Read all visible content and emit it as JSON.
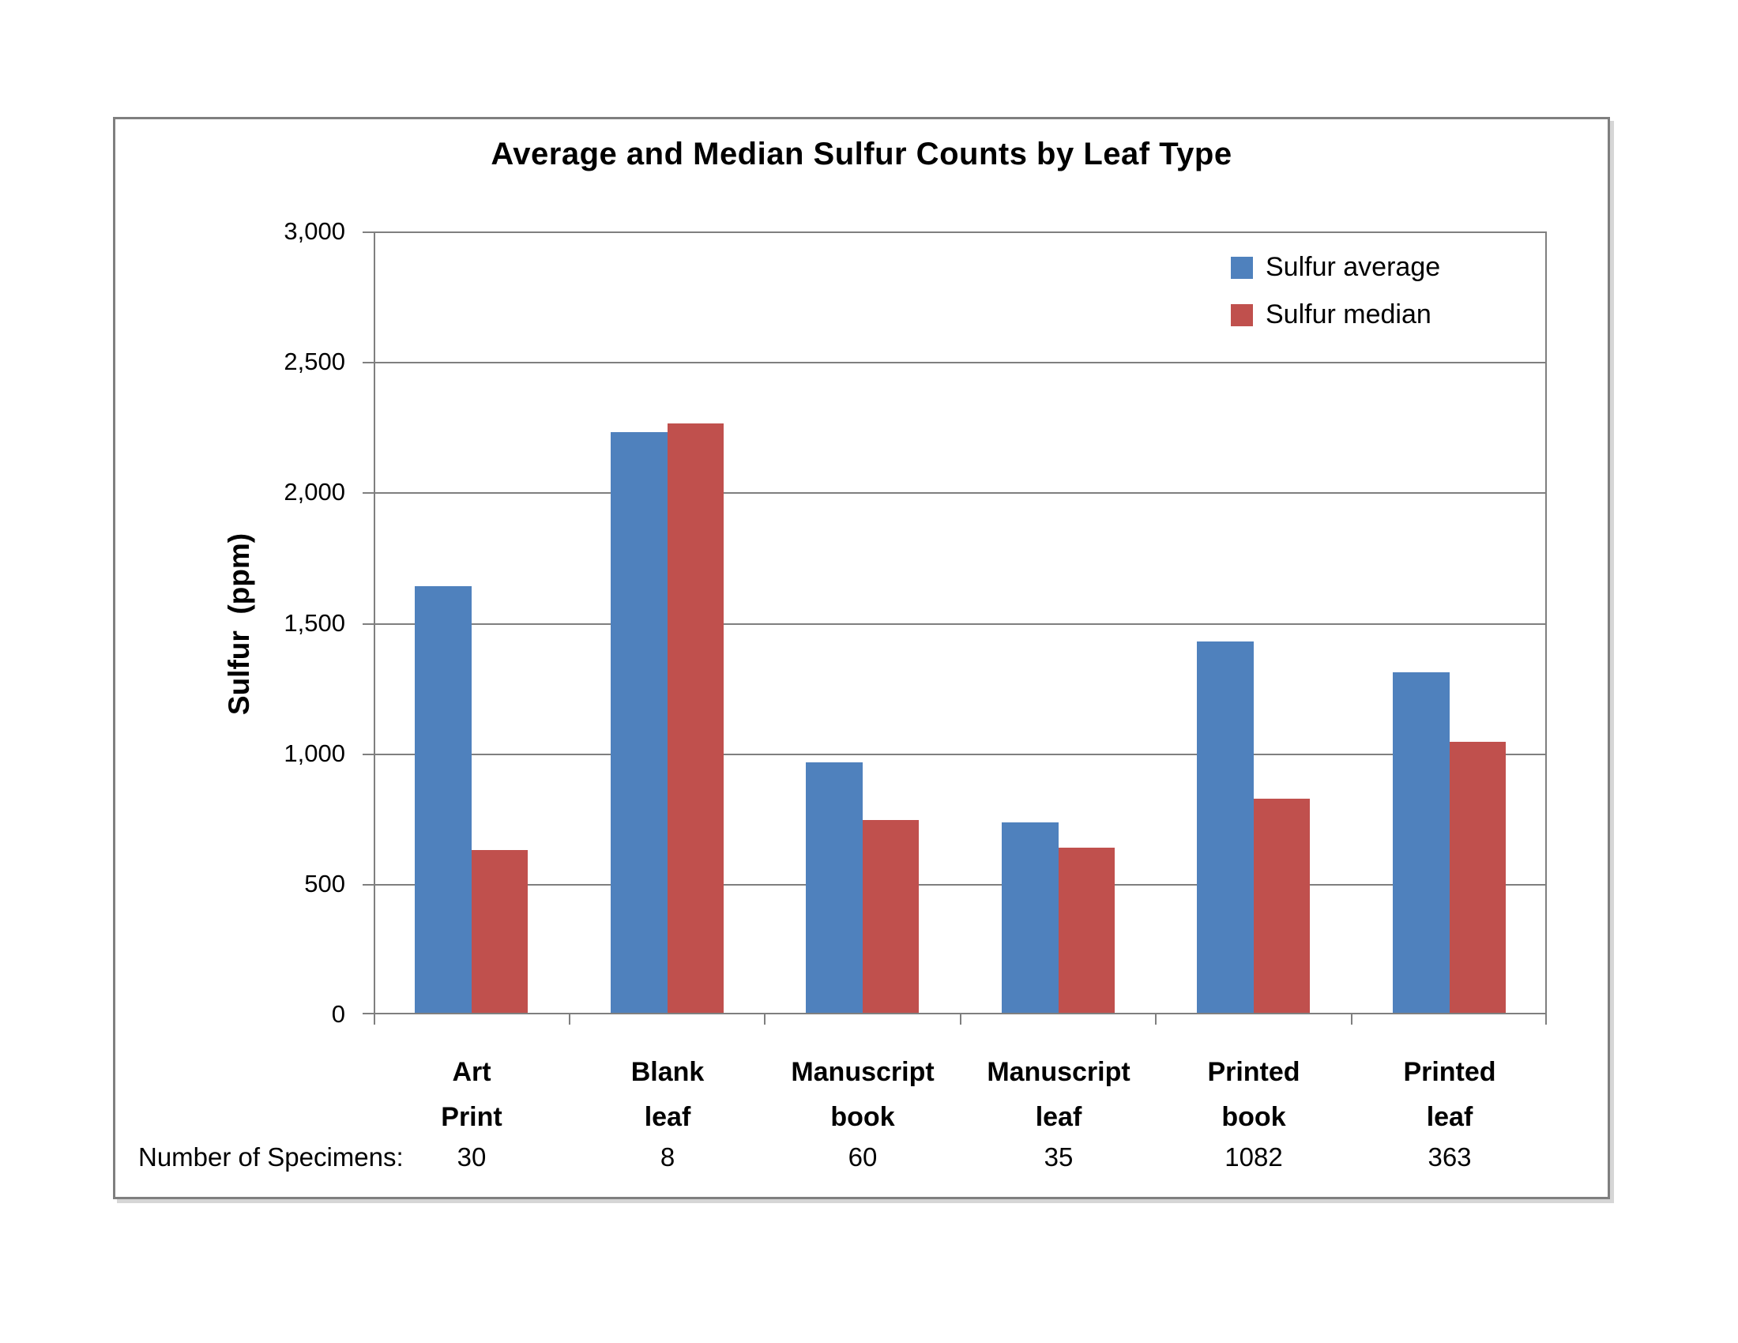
{
  "title": "Average and Median Sulfur Counts by Leaf Type",
  "y_axis": {
    "label": "Sulfur  (ppm)",
    "min": 0,
    "max": 3000,
    "step": 500,
    "tick_labels": [
      "3,000",
      "2,500",
      "2,000",
      "1,500",
      "1,000",
      "500",
      "0"
    ]
  },
  "x_axis": {
    "specimens_label": "Number of Specimens:"
  },
  "legend": [
    {
      "label": "Sulfur average",
      "color": "#4F81BD"
    },
    {
      "label": "Sulfur median",
      "color": "#C0504D"
    }
  ],
  "colors": {
    "average_bar": "#4F81BD",
    "median_bar": "#C0504D",
    "grid_and_axis": "#7f7f7f",
    "chart_border": "#7f7f7f"
  },
  "chart_data": {
    "type": "bar",
    "title": "Average and Median Sulfur Counts by Leaf Type",
    "categories": [
      "Art Print",
      "Blank leaf",
      "Manuscript book",
      "Manuscript leaf",
      "Printed book",
      "Printed leaf"
    ],
    "category_lines": [
      [
        "Art",
        "Print"
      ],
      [
        "Blank",
        "leaf"
      ],
      [
        "Manuscript",
        "book"
      ],
      [
        "Manuscript",
        "leaf"
      ],
      [
        "Printed",
        "book"
      ],
      [
        "Printed",
        "leaf"
      ]
    ],
    "series": [
      {
        "name": "Sulfur average",
        "color": "#4F81BD",
        "values": [
          1640,
          2230,
          965,
          735,
          1430,
          1310
        ]
      },
      {
        "name": "Sulfur median",
        "color": "#C0504D",
        "values": [
          630,
          2265,
          745,
          640,
          825,
          1045
        ]
      }
    ],
    "specimens": [
      "30",
      "8",
      "60",
      "35",
      "1082",
      "363"
    ],
    "xlabel": "",
    "ylabel": "Sulfur  (ppm)",
    "ylim": [
      0,
      3000
    ],
    "grid": true,
    "legend_position": "top-right"
  }
}
